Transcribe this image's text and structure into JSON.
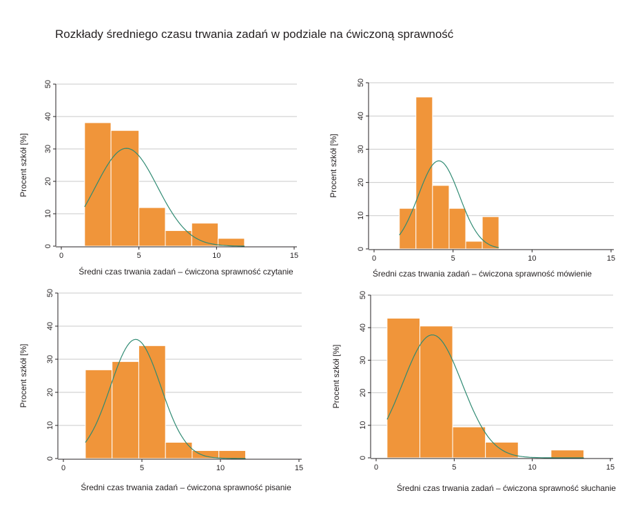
{
  "title": "Rozkłady średniego czasu trwania zadań w podziale na ćwiczoną sprawność",
  "colors": {
    "bar": "#f0953a",
    "curve": "#2e8a72",
    "grid": "#c8c8c8"
  },
  "chart_data": [
    {
      "type": "bar",
      "ylabel": "Procent szkół [%]",
      "xlabel": "Średni czas trwania zadań – ćwiczona sprawność czytanie",
      "xlim": [
        0,
        15
      ],
      "ylim": [
        0,
        50
      ],
      "xticks": [
        0,
        5,
        10,
        15
      ],
      "yticks": [
        0,
        10,
        20,
        30,
        40,
        50
      ],
      "grid": true,
      "bins": [
        {
          "x0": 1.5,
          "x1": 3.2,
          "y": 38.1
        },
        {
          "x0": 3.2,
          "x1": 5.0,
          "y": 35.7
        },
        {
          "x0": 5.0,
          "x1": 6.7,
          "y": 11.9
        },
        {
          "x0": 6.7,
          "x1": 8.4,
          "y": 4.8
        },
        {
          "x0": 8.4,
          "x1": 10.1,
          "y": 7.1
        },
        {
          "x0": 10.1,
          "x1": 11.8,
          "y": 2.4
        }
      ],
      "normal_curve": {
        "mean": 4.2,
        "sd": 2.0,
        "peak": 30.2,
        "x_range": [
          1.5,
          11.8
        ]
      }
    },
    {
      "type": "bar",
      "ylabel": "Procent szkół [%]",
      "xlabel": "Średni czas trwania zadań – ćwiczona sprawność mówienie",
      "xlim": [
        0,
        15
      ],
      "ylim": [
        0,
        50
      ],
      "xticks": [
        0,
        5,
        10,
        15
      ],
      "yticks": [
        0,
        10,
        20,
        30,
        40,
        50
      ],
      "grid": true,
      "bins": [
        {
          "x0": 1.6,
          "x1": 2.65,
          "y": 12.2
        },
        {
          "x0": 2.65,
          "x1": 3.7,
          "y": 45.7
        },
        {
          "x0": 3.7,
          "x1": 4.75,
          "y": 19.1
        },
        {
          "x0": 4.75,
          "x1": 5.8,
          "y": 12.2
        },
        {
          "x0": 5.8,
          "x1": 6.85,
          "y": 2.3
        },
        {
          "x0": 6.85,
          "x1": 7.9,
          "y": 9.7
        }
      ],
      "normal_curve": {
        "mean": 4.1,
        "sd": 1.3,
        "peak": 26.5,
        "x_range": [
          1.6,
          7.9
        ]
      }
    },
    {
      "type": "bar",
      "ylabel": "Procent szkół [%]",
      "xlabel": "Średni czas trwania zadań – ćwiczona sprawność pisanie",
      "xlim": [
        0,
        15
      ],
      "ylim": [
        0,
        50
      ],
      "xticks": [
        0,
        5,
        10,
        15
      ],
      "yticks": [
        0,
        10,
        20,
        30,
        40,
        50
      ],
      "grid": true,
      "bins": [
        {
          "x0": 1.4,
          "x1": 3.1,
          "y": 26.8
        },
        {
          "x0": 3.1,
          "x1": 4.8,
          "y": 29.3
        },
        {
          "x0": 4.8,
          "x1": 6.5,
          "y": 34.1
        },
        {
          "x0": 6.5,
          "x1": 8.2,
          "y": 4.9
        },
        {
          "x0": 8.2,
          "x1": 9.9,
          "y": 2.4
        },
        {
          "x0": 9.9,
          "x1": 11.6,
          "y": 2.4
        }
      ],
      "normal_curve": {
        "mean": 4.6,
        "sd": 1.6,
        "peak": 36.0,
        "x_range": [
          1.4,
          11.6
        ]
      }
    },
    {
      "type": "bar",
      "ylabel": "Procent szkół [%]",
      "xlabel": "Średni czas trwania zadań – ćwiczona sprawność słuchanie",
      "xlim": [
        0,
        15
      ],
      "ylim": [
        0,
        50
      ],
      "xticks": [
        0,
        5,
        10,
        15
      ],
      "yticks": [
        0,
        10,
        20,
        30,
        40,
        50
      ],
      "grid": true,
      "bins": [
        {
          "x0": 0.7,
          "x1": 2.8,
          "y": 42.9
        },
        {
          "x0": 2.8,
          "x1": 4.9,
          "y": 40.5
        },
        {
          "x0": 4.9,
          "x1": 7.0,
          "y": 9.5
        },
        {
          "x0": 7.0,
          "x1": 9.1,
          "y": 4.8
        },
        {
          "x0": 11.2,
          "x1": 13.3,
          "y": 2.4
        }
      ],
      "normal_curve": {
        "mean": 3.6,
        "sd": 1.9,
        "peak": 37.8,
        "x_range": [
          0.7,
          13.3
        ]
      }
    }
  ]
}
